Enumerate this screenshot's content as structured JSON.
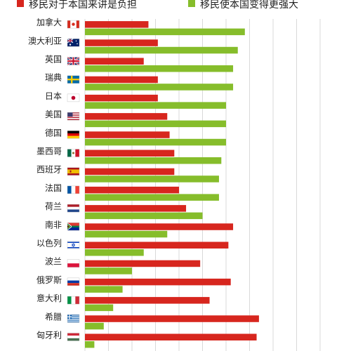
{
  "chart_data": {
    "type": "bar",
    "orientation": "horizontal",
    "grid": true,
    "legend_position": "top",
    "title": "",
    "xlabel": "",
    "ylabel": "",
    "xlim": [
      0,
      100
    ],
    "categories": [
      "加拿大",
      "澳大利亚",
      "英国",
      "瑞典",
      "日本",
      "美国",
      "德国",
      "墨西哥",
      "西班牙",
      "法国",
      "荷兰",
      "南非",
      "以色列",
      "波兰",
      "俄罗斯",
      "意大利",
      "希腊",
      "匈牙利"
    ],
    "flags": [
      "canada",
      "australia",
      "uk",
      "sweden",
      "japan",
      "usa",
      "germany",
      "mexico",
      "spain",
      "france",
      "netherlands",
      "south-africa",
      "israel",
      "poland",
      "russia",
      "italy",
      "greece",
      "hungary"
    ],
    "series": [
      {
        "name": "移民对于本国来讲是负担",
        "color": "#d7261e",
        "values": [
          27,
          31,
          25,
          31,
          31,
          35,
          36,
          38,
          38,
          40,
          43,
          63,
          61,
          49,
          62,
          53,
          74,
          73
        ]
      },
      {
        "name": "移民使本国变得更强大",
        "color": "#86bd2b",
        "values": [
          68,
          65,
          63,
          63,
          60,
          60,
          60,
          58,
          57,
          57,
          50,
          35,
          25,
          20,
          16,
          12,
          8,
          4
        ]
      }
    ]
  }
}
